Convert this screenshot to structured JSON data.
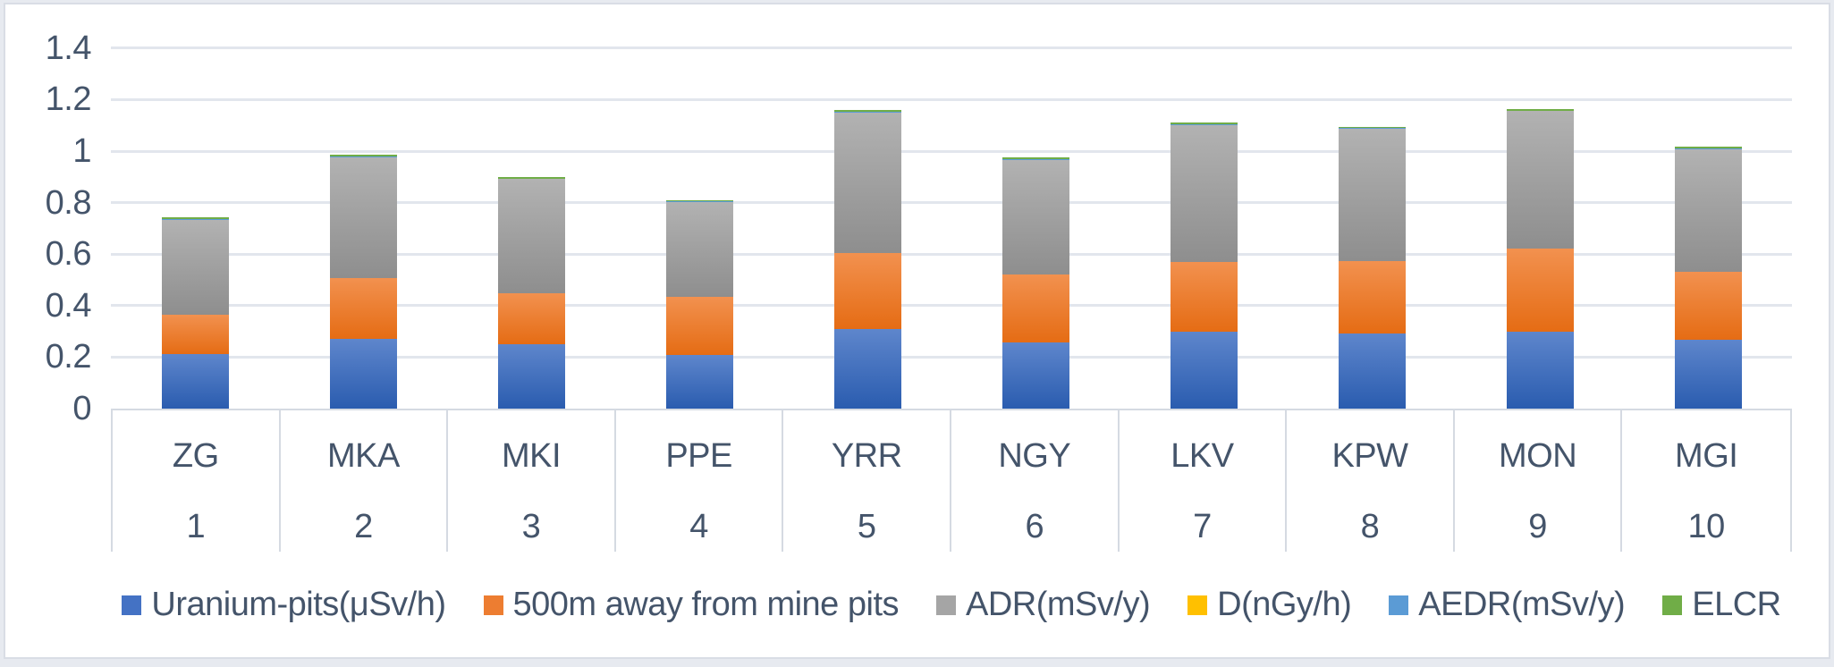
{
  "chart_data": {
    "type": "bar",
    "stacked": true,
    "title": "",
    "categories": [
      "ZG",
      "MKA",
      "MKI",
      "PPE",
      "YRR",
      "NGY",
      "LKV",
      "KPW",
      "MON",
      "MGI"
    ],
    "category_numbers": [
      "1",
      "2",
      "3",
      "4",
      "5",
      "6",
      "7",
      "8",
      "9",
      "10"
    ],
    "series": [
      {
        "name": "Uranium-pits(μSv/h)",
        "color": "#4472C4",
        "gradient": [
          "#5E86CC",
          "#2A5CAF"
        ],
        "values": [
          0.211,
          0.272,
          0.251,
          0.207,
          0.31,
          0.258,
          0.3,
          0.29,
          0.3,
          0.268
        ]
      },
      {
        "name": "500m away from mine pits",
        "color": "#ED7D31",
        "gradient": [
          "#F2914F",
          "#E56C14"
        ],
        "values": [
          0.152,
          0.234,
          0.196,
          0.227,
          0.295,
          0.262,
          0.271,
          0.284,
          0.322,
          0.262
        ]
      },
      {
        "name": "ADR(mSv/y)",
        "color": "#A5A5A5",
        "gradient": [
          "#B2B2B2",
          "#8E8E8E"
        ],
        "values": [
          0.37,
          0.47,
          0.445,
          0.368,
          0.545,
          0.444,
          0.53,
          0.513,
          0.534,
          0.477
        ]
      },
      {
        "name": "D(nGy/h)",
        "color": "#FFC000",
        "gradient": [
          "#FFC000",
          "#FFC000"
        ],
        "values": [
          0.001,
          0.001,
          0.001,
          0.001,
          0.001,
          0.001,
          0.001,
          0.001,
          0.001,
          0.001
        ]
      },
      {
        "name": "AEDR(mSv/y)",
        "color": "#5B9BD5",
        "gradient": [
          "#5B9BD5",
          "#5B9BD5"
        ],
        "values": [
          0.001,
          0.001,
          0.001,
          0.001,
          0.001,
          0.004,
          0.001,
          0.001,
          0.001,
          0.004
        ]
      },
      {
        "name": "ELCR",
        "color": "#70AD47",
        "gradient": [
          "#70AD47",
          "#70AD47"
        ],
        "values": [
          0.007,
          0.007,
          0.007,
          0.006,
          0.007,
          0.006,
          0.007,
          0.006,
          0.006,
          0.005
        ]
      }
    ],
    "y_axis": {
      "min": 0,
      "max": 1.4,
      "step": 0.2,
      "tick_labels": [
        "0",
        "0.2",
        "0.4",
        "0.6",
        "0.8",
        "1",
        "1.2",
        "1.4"
      ]
    },
    "grid": true,
    "legend_position": "bottom"
  },
  "colors": {
    "text": "#44546A",
    "gridline": "#E2E6ED",
    "table_border": "#D5DAE2",
    "frame_border": "#D9DDE5",
    "page_background": "#E7EAF0",
    "chart_background": "#FFFFFF"
  }
}
